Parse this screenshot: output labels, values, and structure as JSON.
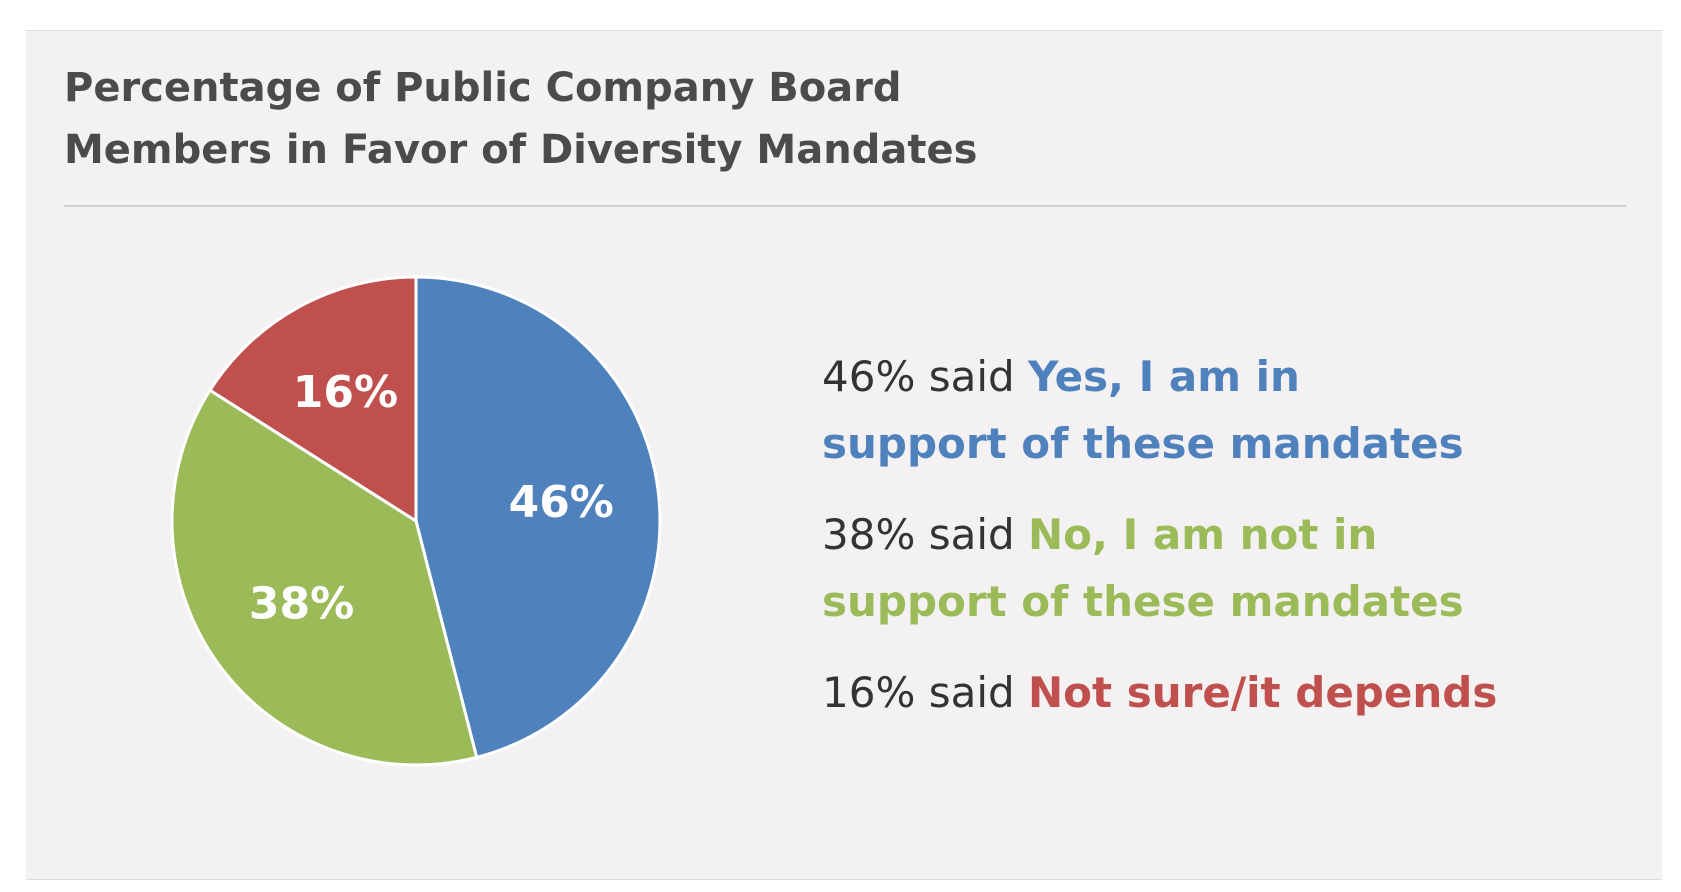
{
  "chart_data": {
    "type": "pie",
    "title_lines": [
      "Percentage of Public Company Board",
      "Members in Favor of Diversity Mandates"
    ],
    "slices": [
      {
        "label": "Yes, I am in support of these mandates",
        "value": 46,
        "value_label": "46%",
        "color": "#4f81bd"
      },
      {
        "label": "No, I am not in support of these mandates",
        "value": 38,
        "value_label": "38%",
        "color": "#9bbb59"
      },
      {
        "label": "Not sure/it depends",
        "value": 16,
        "value_label": "16%",
        "color": "#c0504d"
      }
    ],
    "legend": [
      {
        "lead": "46% said ",
        "answer_lines": [
          "Yes, I am in",
          "support of these mandates"
        ],
        "color": "#4f81bd"
      },
      {
        "lead": "38% said ",
        "answer_lines": [
          "No, I am not in",
          "support of these mandates"
        ],
        "color": "#9bbb59"
      },
      {
        "lead": "16% said ",
        "answer_lines": [
          "Not sure/it depends"
        ],
        "color": "#c0504d"
      }
    ],
    "legend_placement": "right",
    "start_angle_deg": 0,
    "direction": "clockwise"
  }
}
